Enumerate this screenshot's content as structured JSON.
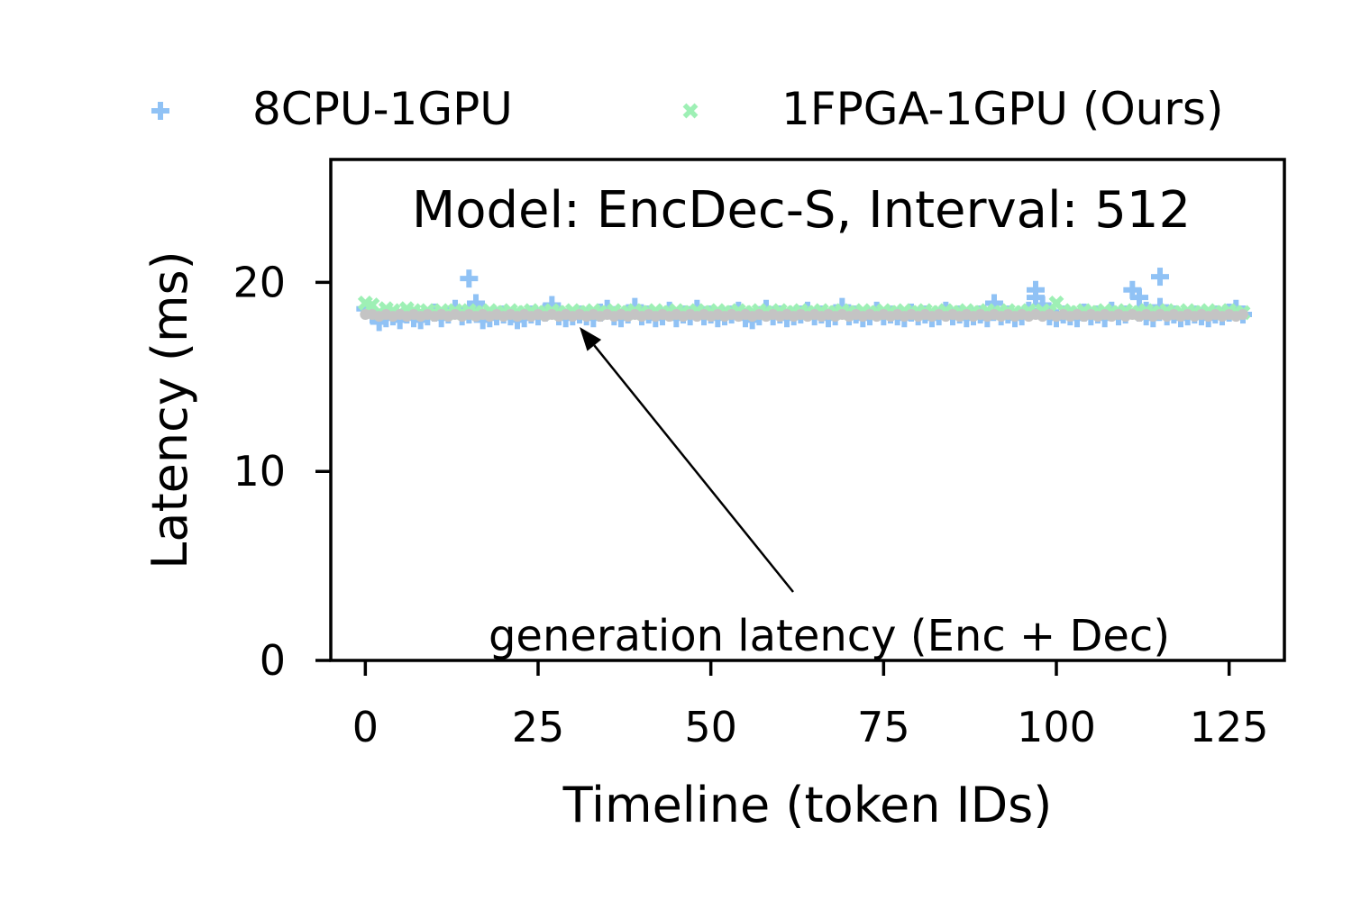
{
  "chart_data": {
    "type": "scatter",
    "title": "Model: EncDec-S, Interval: 512",
    "xlabel": "Timeline (token IDs)",
    "ylabel": "Latency (ms)",
    "xlim": [
      -5,
      133
    ],
    "ylim": [
      0,
      26.5
    ],
    "xticks": [
      0,
      25,
      50,
      75,
      100,
      125
    ],
    "yticks": [
      0,
      10,
      20
    ],
    "grid": false,
    "legend_position": "top, above plot, 2 columns",
    "annotation": {
      "text": "generation latency (Enc + Dec)",
      "arrow_target": {
        "x": 31,
        "y": 18.3
      }
    },
    "series": [
      {
        "name": "8CPU-1GPU",
        "marker": "plus",
        "color": "#90c2f5",
        "x": [
          0,
          1,
          2,
          3,
          4,
          5,
          6,
          7,
          8,
          9,
          10,
          11,
          12,
          13,
          14,
          15,
          16,
          17,
          18,
          19,
          20,
          21,
          22,
          23,
          24,
          25,
          26,
          27,
          28,
          29,
          30,
          31,
          32,
          33,
          34,
          35,
          36,
          37,
          38,
          39,
          40,
          41,
          42,
          43,
          44,
          45,
          46,
          47,
          48,
          49,
          50,
          51,
          52,
          53,
          54,
          55,
          56,
          57,
          58,
          59,
          60,
          61,
          62,
          63,
          64,
          65,
          66,
          67,
          68,
          69,
          70,
          71,
          72,
          73,
          74,
          75,
          76,
          77,
          78,
          79,
          80,
          81,
          82,
          83,
          84,
          85,
          86,
          87,
          88,
          89,
          90,
          91,
          92,
          93,
          94,
          95,
          96,
          97,
          98,
          99,
          100,
          101,
          102,
          103,
          104,
          105,
          106,
          107,
          108,
          109,
          110,
          111,
          112,
          113,
          114,
          115,
          116,
          117,
          118,
          119,
          120,
          121,
          122,
          123,
          124,
          125,
          126,
          127,
          15,
          16,
          97,
          112,
          113,
          115
        ],
        "y": [
          18.6,
          18.3,
          17.9,
          18.1,
          18.2,
          18.0,
          18.3,
          18.1,
          18.0,
          18.2,
          18.4,
          18.1,
          18.3,
          18.6,
          18.2,
          18.3,
          18.8,
          18.0,
          18.1,
          18.2,
          18.3,
          18.2,
          18.0,
          18.1,
          18.3,
          18.2,
          18.4,
          18.8,
          18.2,
          18.1,
          18.2,
          18.3,
          18.2,
          18.1,
          18.4,
          18.6,
          18.2,
          18.1,
          18.3,
          18.7,
          18.2,
          18.3,
          18.1,
          18.2,
          18.5,
          18.1,
          18.3,
          18.2,
          18.6,
          18.2,
          18.3,
          18.1,
          18.2,
          18.3,
          18.5,
          18.1,
          18.0,
          18.2,
          18.6,
          18.2,
          18.3,
          18.1,
          18.2,
          18.3,
          18.5,
          18.2,
          18.3,
          18.1,
          18.2,
          18.7,
          18.2,
          18.3,
          18.1,
          18.2,
          18.5,
          18.2,
          18.3,
          18.2,
          18.1,
          18.4,
          18.2,
          18.3,
          18.1,
          18.2,
          18.5,
          18.2,
          18.3,
          18.1,
          18.2,
          18.3,
          18.1,
          18.9,
          18.2,
          18.3,
          18.1,
          18.2,
          18.5,
          19.6,
          18.8,
          18.2,
          18.1,
          18.3,
          18.2,
          18.1,
          18.4,
          18.2,
          18.3,
          18.1,
          18.5,
          18.2,
          18.3,
          19.6,
          19.2,
          18.2,
          18.1,
          20.3,
          18.2,
          18.3,
          18.1,
          18.2,
          18.3,
          18.2,
          18.1,
          18.3,
          18.2,
          18.4,
          18.6,
          18.3,
          20.2,
          18.9,
          19.2,
          18.4,
          18.5,
          18.7
        ]
      },
      {
        "name": "1FPGA-1GPU (Ours)",
        "marker": "x",
        "color": "#9ef0b5",
        "x": [
          0,
          1,
          2,
          3,
          4,
          5,
          6,
          7,
          8,
          9,
          10,
          11,
          12,
          13,
          14,
          15,
          16,
          17,
          18,
          19,
          20,
          21,
          22,
          23,
          24,
          25,
          26,
          27,
          28,
          29,
          30,
          31,
          32,
          33,
          34,
          35,
          36,
          37,
          38,
          39,
          40,
          41,
          42,
          43,
          44,
          45,
          46,
          47,
          48,
          49,
          50,
          51,
          52,
          53,
          54,
          55,
          56,
          57,
          58,
          59,
          60,
          61,
          62,
          63,
          64,
          65,
          66,
          67,
          68,
          69,
          70,
          71,
          72,
          73,
          74,
          75,
          76,
          77,
          78,
          79,
          80,
          81,
          82,
          83,
          84,
          85,
          86,
          87,
          88,
          89,
          90,
          91,
          92,
          93,
          94,
          95,
          96,
          97,
          98,
          99,
          100,
          101,
          102,
          103,
          104,
          105,
          106,
          107,
          108,
          109,
          110,
          111,
          112,
          113,
          114,
          115,
          116,
          117,
          118,
          119,
          120,
          121,
          122,
          123,
          124,
          125,
          126,
          127
        ],
        "y": [
          18.9,
          18.8,
          18.4,
          18.6,
          18.5,
          18.4,
          18.6,
          18.5,
          18.4,
          18.5,
          18.4,
          18.5,
          18.4,
          18.5,
          18.4,
          18.5,
          18.4,
          18.4,
          18.5,
          18.4,
          18.4,
          18.5,
          18.4,
          18.4,
          18.5,
          18.4,
          18.4,
          18.5,
          18.4,
          18.4,
          18.5,
          18.4,
          18.4,
          18.5,
          18.4,
          18.4,
          18.5,
          18.4,
          18.4,
          18.5,
          18.4,
          18.4,
          18.5,
          18.4,
          18.4,
          18.5,
          18.4,
          18.4,
          18.5,
          18.4,
          18.4,
          18.5,
          18.4,
          18.4,
          18.5,
          18.4,
          18.4,
          18.5,
          18.4,
          18.4,
          18.5,
          18.4,
          18.4,
          18.5,
          18.4,
          18.4,
          18.5,
          18.4,
          18.4,
          18.5,
          18.4,
          18.4,
          18.5,
          18.4,
          18.4,
          18.5,
          18.4,
          18.4,
          18.5,
          18.4,
          18.4,
          18.5,
          18.4,
          18.4,
          18.5,
          18.4,
          18.4,
          18.5,
          18.4,
          18.4,
          18.5,
          18.4,
          18.4,
          18.5,
          18.4,
          18.4,
          18.5,
          18.4,
          18.5,
          18.4,
          18.9,
          18.5,
          18.4,
          18.4,
          18.5,
          18.4,
          18.4,
          18.5,
          18.4,
          18.4,
          18.5,
          18.4,
          18.4,
          18.5,
          18.4,
          18.4,
          18.5,
          18.4,
          18.4,
          18.5,
          18.4,
          18.4,
          18.5,
          18.4,
          18.4,
          18.5,
          18.4,
          18.4
        ]
      },
      {
        "name": "",
        "marker": "dot",
        "color": "#c4c4c4",
        "x": [
          0,
          1,
          2,
          3,
          4,
          5,
          6,
          7,
          8,
          9,
          10,
          11,
          12,
          13,
          14,
          15,
          16,
          17,
          18,
          19,
          20,
          21,
          22,
          23,
          24,
          25,
          26,
          27,
          28,
          29,
          30,
          31,
          32,
          33,
          34,
          35,
          36,
          37,
          38,
          39,
          40,
          41,
          42,
          43,
          44,
          45,
          46,
          47,
          48,
          49,
          50,
          51,
          52,
          53,
          54,
          55,
          56,
          57,
          58,
          59,
          60,
          61,
          62,
          63,
          64,
          65,
          66,
          67,
          68,
          69,
          70,
          71,
          72,
          73,
          74,
          75,
          76,
          77,
          78,
          79,
          80,
          81,
          82,
          83,
          84,
          85,
          86,
          87,
          88,
          89,
          90,
          91,
          92,
          93,
          94,
          95,
          96,
          97,
          98,
          99,
          100,
          101,
          102,
          103,
          104,
          105,
          106,
          107,
          108,
          109,
          110,
          111,
          112,
          113,
          114,
          115,
          116,
          117,
          118,
          119,
          120,
          121,
          122,
          123,
          124,
          125,
          126,
          127
        ],
        "y": [
          18.3,
          18.3,
          18.2,
          18.3,
          18.2,
          18.3,
          18.2,
          18.3,
          18.2,
          18.3,
          18.2,
          18.3,
          18.2,
          18.3,
          18.2,
          18.3,
          18.2,
          18.3,
          18.2,
          18.3,
          18.2,
          18.3,
          18.2,
          18.3,
          18.2,
          18.3,
          18.2,
          18.3,
          18.2,
          18.3,
          18.2,
          18.3,
          18.2,
          18.3,
          18.2,
          18.3,
          18.2,
          18.3,
          18.2,
          18.3,
          18.2,
          18.3,
          18.2,
          18.3,
          18.2,
          18.3,
          18.2,
          18.3,
          18.2,
          18.3,
          18.2,
          18.3,
          18.2,
          18.3,
          18.2,
          18.3,
          18.2,
          18.3,
          18.2,
          18.3,
          18.2,
          18.3,
          18.2,
          18.3,
          18.2,
          18.3,
          18.2,
          18.3,
          18.2,
          18.3,
          18.2,
          18.3,
          18.2,
          18.3,
          18.2,
          18.3,
          18.2,
          18.3,
          18.2,
          18.3,
          18.2,
          18.3,
          18.2,
          18.3,
          18.2,
          18.3,
          18.2,
          18.3,
          18.2,
          18.3,
          18.2,
          18.3,
          18.2,
          18.3,
          18.2,
          18.3,
          18.2,
          18.3,
          18.2,
          18.3,
          18.2,
          18.3,
          18.2,
          18.3,
          18.2,
          18.3,
          18.2,
          18.3,
          18.2,
          18.3,
          18.2,
          18.3,
          18.2,
          18.3,
          18.2,
          18.3,
          18.2,
          18.3,
          18.2,
          18.3,
          18.2,
          18.3,
          18.2,
          18.3,
          18.2,
          18.3,
          18.2,
          18.3
        ]
      }
    ]
  }
}
